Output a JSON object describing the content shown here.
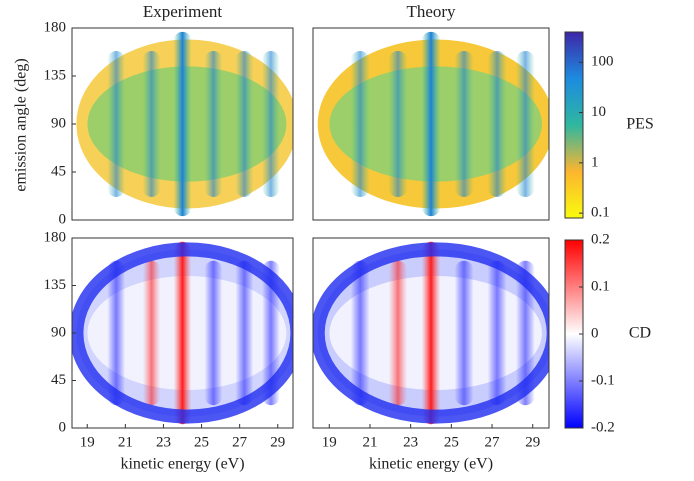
{
  "chart_data": [
    {
      "type": "heatmap",
      "title": "Experiment",
      "ylabel": "emission angle (deg)",
      "xlim": [
        18.2,
        29.8
      ],
      "ylim": [
        0,
        180
      ],
      "yticks": [
        0,
        45,
        90,
        135,
        180
      ],
      "colormap": "pes"
    },
    {
      "type": "heatmap",
      "title": "Theory",
      "xlim": [
        18.2,
        29.8
      ],
      "ylim": [
        0,
        180
      ],
      "colormap": "pes",
      "colorbar": {
        "label": "PES",
        "log": true,
        "lim": [
          0.08,
          400
        ],
        "ticks": [
          0.1,
          1,
          10,
          100
        ],
        "colors": [
          "#f9fb0e",
          "#fcb52f",
          "#2fb7a0",
          "#1d8be0",
          "#3e26a8"
        ]
      }
    },
    {
      "type": "heatmap",
      "xlabel": "kinetic energy (eV)",
      "xlim": [
        18.2,
        29.8
      ],
      "ylim": [
        0,
        180
      ],
      "xticks": [
        19,
        21,
        23,
        25,
        27,
        29
      ],
      "yticks": [
        0,
        45,
        90,
        135,
        180
      ],
      "colormap": "cd"
    },
    {
      "type": "heatmap",
      "xlabel": "kinetic energy (eV)",
      "xlim": [
        18.2,
        29.8
      ],
      "ylim": [
        0,
        180
      ],
      "xticks": [
        19,
        21,
        23,
        25,
        27,
        29
      ],
      "colormap": "cd",
      "colorbar": {
        "label": "CD",
        "log": false,
        "lim": [
          -0.2,
          0.2
        ],
        "ticks": [
          -0.2,
          -0.1,
          0,
          0.1,
          0.2
        ],
        "colors": [
          "#0000ff",
          "#ffffff",
          "#ff0000"
        ]
      }
    }
  ]
}
